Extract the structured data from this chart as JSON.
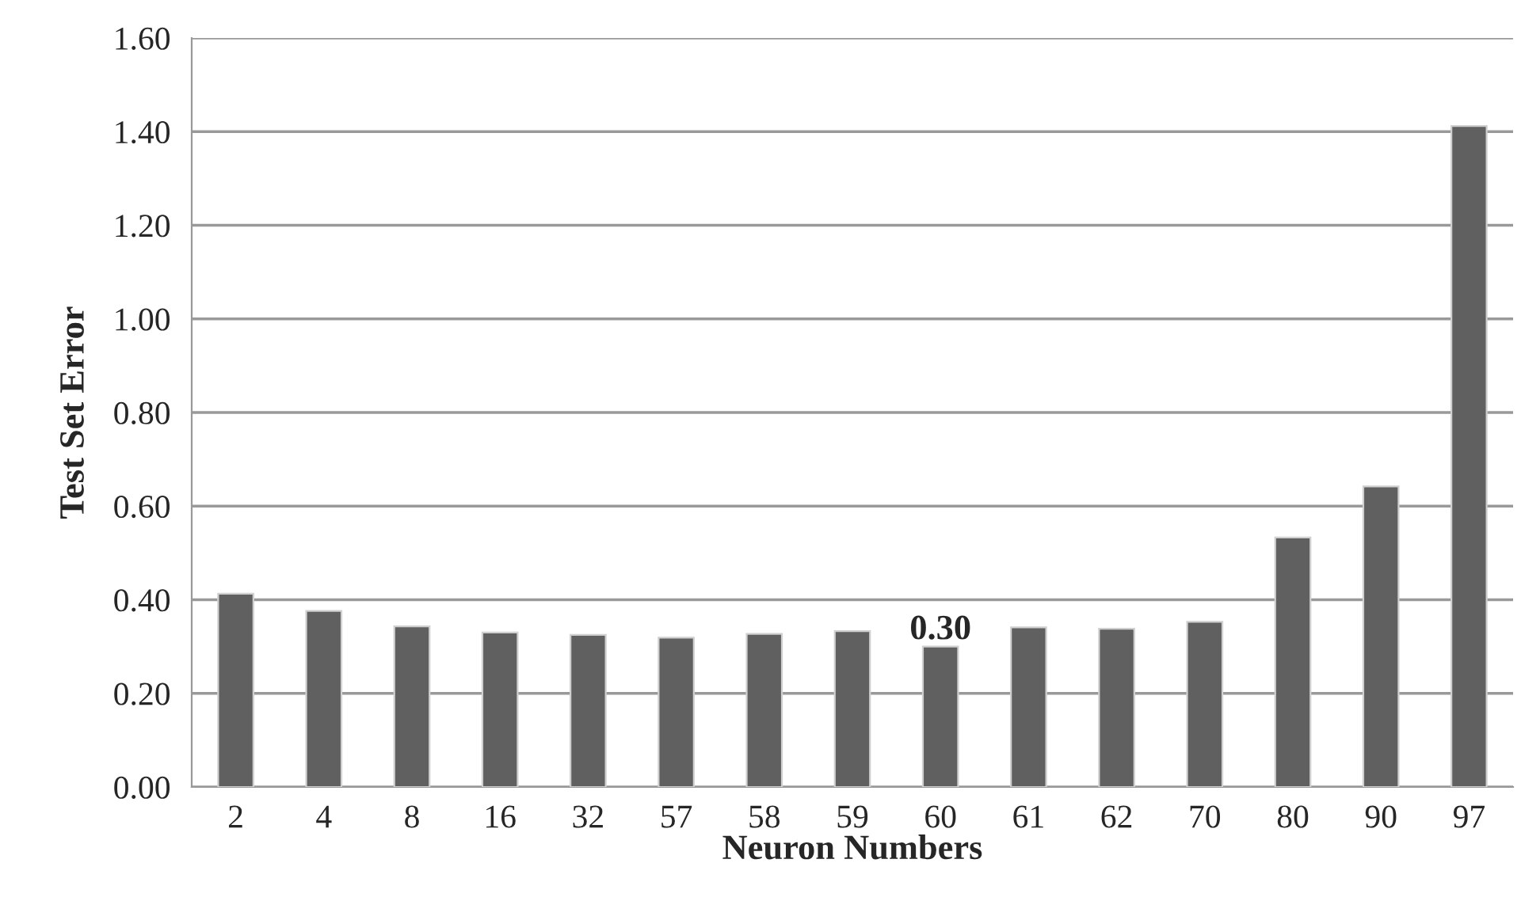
{
  "chart_data": {
    "type": "bar",
    "xlabel": "Neuron Numbers",
    "ylabel": "Test Set Error",
    "categories": [
      "2",
      "4",
      "8",
      "16",
      "32",
      "57",
      "58",
      "59",
      "60",
      "61",
      "62",
      "70",
      "80",
      "90",
      "97"
    ],
    "values": [
      0.413,
      0.376,
      0.343,
      0.33,
      0.325,
      0.319,
      0.327,
      0.333,
      0.3,
      0.341,
      0.338,
      0.353,
      0.533,
      0.642,
      1.412
    ],
    "value_labels": [
      null,
      null,
      null,
      null,
      null,
      null,
      null,
      null,
      "0.30",
      null,
      null,
      null,
      null,
      null,
      null
    ],
    "color": "#606060",
    "ylim": [
      0,
      1.6
    ],
    "yticks": [
      {
        "value": 0,
        "label": "0.00"
      },
      {
        "value": 0.2,
        "label": "0.20"
      },
      {
        "value": 0.4,
        "label": "0.40"
      },
      {
        "value": 0.6,
        "label": "0.60"
      },
      {
        "value": 0.8,
        "label": "0.80"
      },
      {
        "value": 1.0,
        "label": "1.00"
      },
      {
        "value": 1.2,
        "label": "1.20"
      },
      {
        "value": 1.4,
        "label": "1.40"
      },
      {
        "value": 1.6,
        "label": "1.60"
      }
    ],
    "grid": "y"
  }
}
